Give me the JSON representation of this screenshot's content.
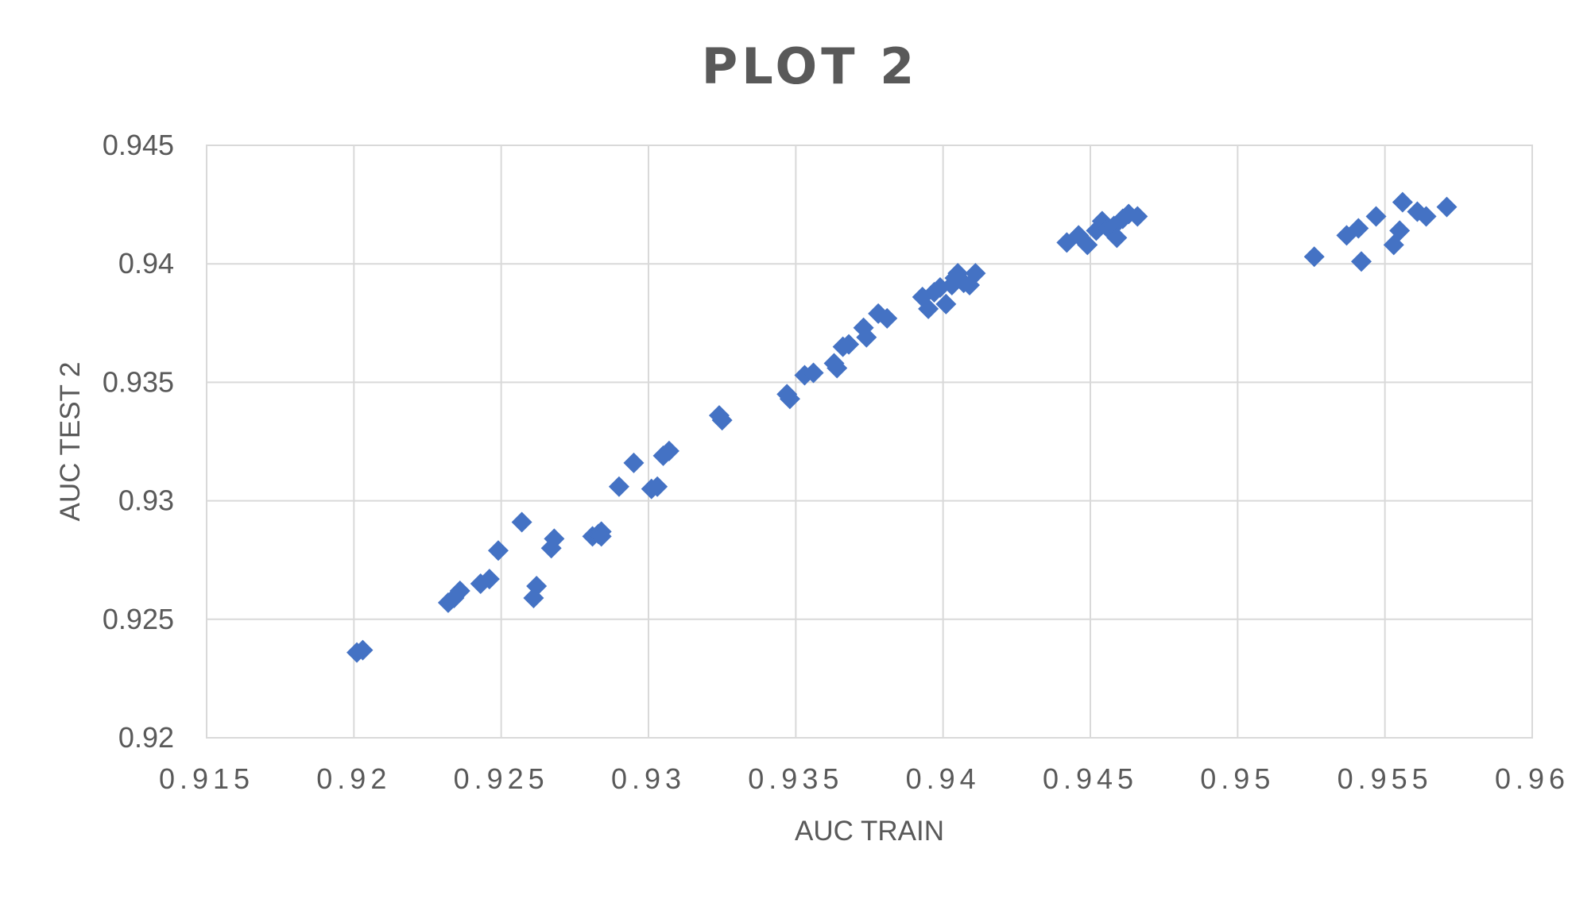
{
  "chart_data": {
    "type": "scatter",
    "title": "PLOT 2",
    "xlabel": "AUC TRAIN",
    "ylabel": "AUC TEST 2",
    "xlim": [
      0.915,
      0.96
    ],
    "ylim": [
      0.92,
      0.945
    ],
    "x_ticks": [
      0.915,
      0.92,
      0.925,
      0.93,
      0.935,
      0.94,
      0.945,
      0.95,
      0.955,
      0.96
    ],
    "x_tick_labels": [
      "0.915",
      "0.92",
      "0.925",
      "0.93",
      "0.935",
      "0.94",
      "0.945",
      "0.95",
      "0.955",
      "0.96"
    ],
    "y_ticks": [
      0.92,
      0.925,
      0.93,
      0.935,
      0.94,
      0.945
    ],
    "y_tick_labels": [
      "0.92",
      "0.925",
      "0.93",
      "0.935",
      "0.94",
      "0.945"
    ],
    "grid": true,
    "legend": false,
    "marker": "diamond",
    "series": [
      {
        "color": "#4472c4",
        "points": [
          [
            0.9201,
            0.9236
          ],
          [
            0.9203,
            0.9237
          ],
          [
            0.9232,
            0.9257
          ],
          [
            0.9234,
            0.9259
          ],
          [
            0.9236,
            0.9262
          ],
          [
            0.9243,
            0.9265
          ],
          [
            0.9246,
            0.9267
          ],
          [
            0.9249,
            0.9279
          ],
          [
            0.9257,
            0.9291
          ],
          [
            0.9261,
            0.9259
          ],
          [
            0.9262,
            0.9264
          ],
          [
            0.9267,
            0.928
          ],
          [
            0.9268,
            0.9284
          ],
          [
            0.9281,
            0.9285
          ],
          [
            0.9283,
            0.9286
          ],
          [
            0.9284,
            0.9287
          ],
          [
            0.9284,
            0.9285
          ],
          [
            0.929,
            0.9306
          ],
          [
            0.9295,
            0.9316
          ],
          [
            0.9301,
            0.9305
          ],
          [
            0.9303,
            0.9306
          ],
          [
            0.9305,
            0.9319
          ],
          [
            0.9307,
            0.9321
          ],
          [
            0.9324,
            0.9336
          ],
          [
            0.9325,
            0.9334
          ],
          [
            0.9347,
            0.9345
          ],
          [
            0.9348,
            0.9343
          ],
          [
            0.9353,
            0.9353
          ],
          [
            0.9356,
            0.9354
          ],
          [
            0.9363,
            0.9358
          ],
          [
            0.9364,
            0.9356
          ],
          [
            0.9366,
            0.9365
          ],
          [
            0.9368,
            0.9366
          ],
          [
            0.9373,
            0.9373
          ],
          [
            0.9374,
            0.9369
          ],
          [
            0.9378,
            0.9379
          ],
          [
            0.9381,
            0.9377
          ],
          [
            0.9393,
            0.9386
          ],
          [
            0.9395,
            0.9381
          ],
          [
            0.9397,
            0.9388
          ],
          [
            0.9399,
            0.939
          ],
          [
            0.9401,
            0.9383
          ],
          [
            0.9403,
            0.9391
          ],
          [
            0.9404,
            0.9394
          ],
          [
            0.9405,
            0.9396
          ],
          [
            0.9407,
            0.9392
          ],
          [
            0.9409,
            0.9391
          ],
          [
            0.9411,
            0.9396
          ],
          [
            0.9442,
            0.9409
          ],
          [
            0.9446,
            0.9412
          ],
          [
            0.9449,
            0.9408
          ],
          [
            0.9452,
            0.9414
          ],
          [
            0.9454,
            0.9418
          ],
          [
            0.9456,
            0.9415
          ],
          [
            0.9458,
            0.9416
          ],
          [
            0.9459,
            0.9411
          ],
          [
            0.9461,
            0.9419
          ],
          [
            0.9463,
            0.9421
          ],
          [
            0.9466,
            0.942
          ],
          [
            0.9526,
            0.9403
          ],
          [
            0.9537,
            0.9412
          ],
          [
            0.9541,
            0.9415
          ],
          [
            0.9542,
            0.9401
          ],
          [
            0.9547,
            0.942
          ],
          [
            0.9553,
            0.9408
          ],
          [
            0.9555,
            0.9414
          ],
          [
            0.9556,
            0.9426
          ],
          [
            0.9561,
            0.9422
          ],
          [
            0.9564,
            0.942
          ],
          [
            0.9571,
            0.9424
          ]
        ]
      }
    ]
  }
}
